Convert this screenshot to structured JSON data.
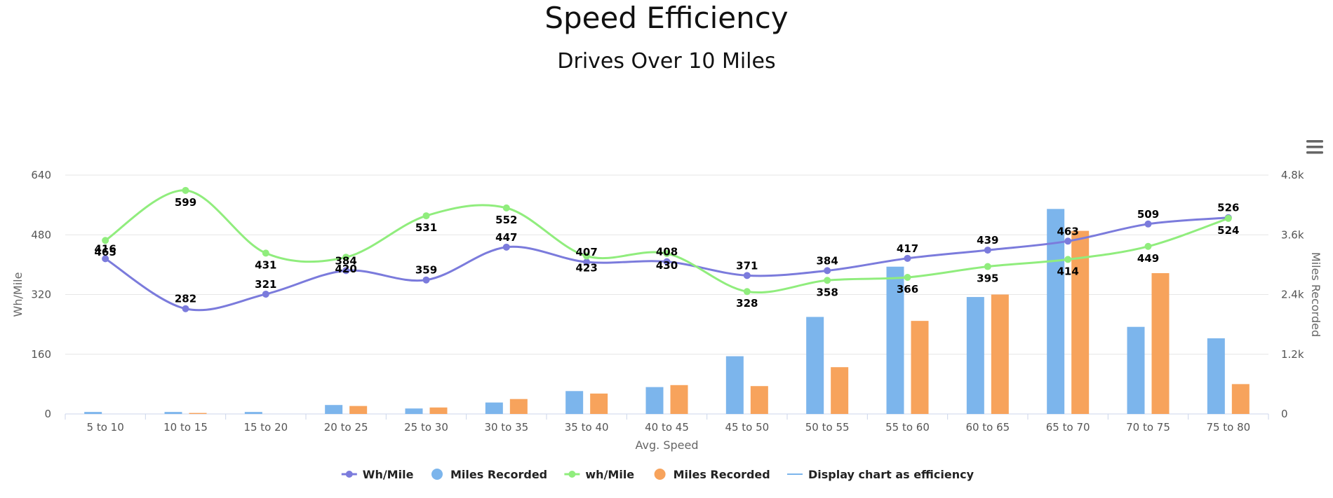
{
  "chart_data": {
    "type": "bar",
    "title": "Speed Efficiency",
    "subtitle": "Drives Over 10 Miles",
    "xlabel": "Avg. Speed",
    "ylabel_left": "Wh/Mile",
    "ylabel_right": "Miles Recorded",
    "categories": [
      "5 to 10",
      "10 to 15",
      "15 to 20",
      "20 to 25",
      "25 to 30",
      "30 to 35",
      "35 to 40",
      "40 to 45",
      "45 to 50",
      "50 to 55",
      "55 to 60",
      "60 to 65",
      "65 to 70",
      "70 to 75",
      "75 to 80"
    ],
    "ylim_left": [
      0,
      640
    ],
    "yticks_left": [
      "0",
      "160",
      "320",
      "480",
      "640"
    ],
    "ylim_right": [
      0,
      4800
    ],
    "yticks_right": [
      "0",
      "1.2k",
      "2.4k",
      "3.6k",
      "4.8k"
    ],
    "grid": true,
    "legend_position": "bottom",
    "series": [
      {
        "name": "Wh/Mile",
        "type": "line",
        "axis": "left",
        "color": "#7b7bdc",
        "label_position": "above",
        "values": [
          416,
          282,
          321,
          384,
          359,
          447,
          407,
          408,
          371,
          384,
          417,
          439,
          463,
          509,
          526
        ]
      },
      {
        "name": "Miles Recorded",
        "type": "bar",
        "axis": "right",
        "color": "#7cb5ec",
        "values": [
          40,
          40,
          40,
          180,
          110,
          230,
          460,
          540,
          1160,
          1950,
          2960,
          2350,
          4120,
          1750,
          1520
        ]
      },
      {
        "name": "wh/Mile",
        "type": "line",
        "axis": "left",
        "color": "#90ed7d",
        "label_position": "below",
        "values": [
          465,
          599,
          431,
          420,
          531,
          552,
          423,
          430,
          328,
          358,
          366,
          395,
          414,
          449,
          524
        ]
      },
      {
        "name": "Miles Recorded",
        "type": "bar",
        "axis": "right",
        "color": "#f7a35c",
        "values": [
          0,
          20,
          0,
          160,
          130,
          300,
          410,
          580,
          560,
          940,
          1870,
          2400,
          3680,
          2830,
          600
        ]
      }
    ],
    "legend": [
      "Wh/Mile",
      "Miles Recorded",
      "wh/Mile",
      "Miles Recorded",
      "Display chart as efficiency"
    ],
    "legend_extra_color": "#7cb5ec"
  },
  "ui": {
    "menu_icon": "hamburger-menu-icon"
  }
}
